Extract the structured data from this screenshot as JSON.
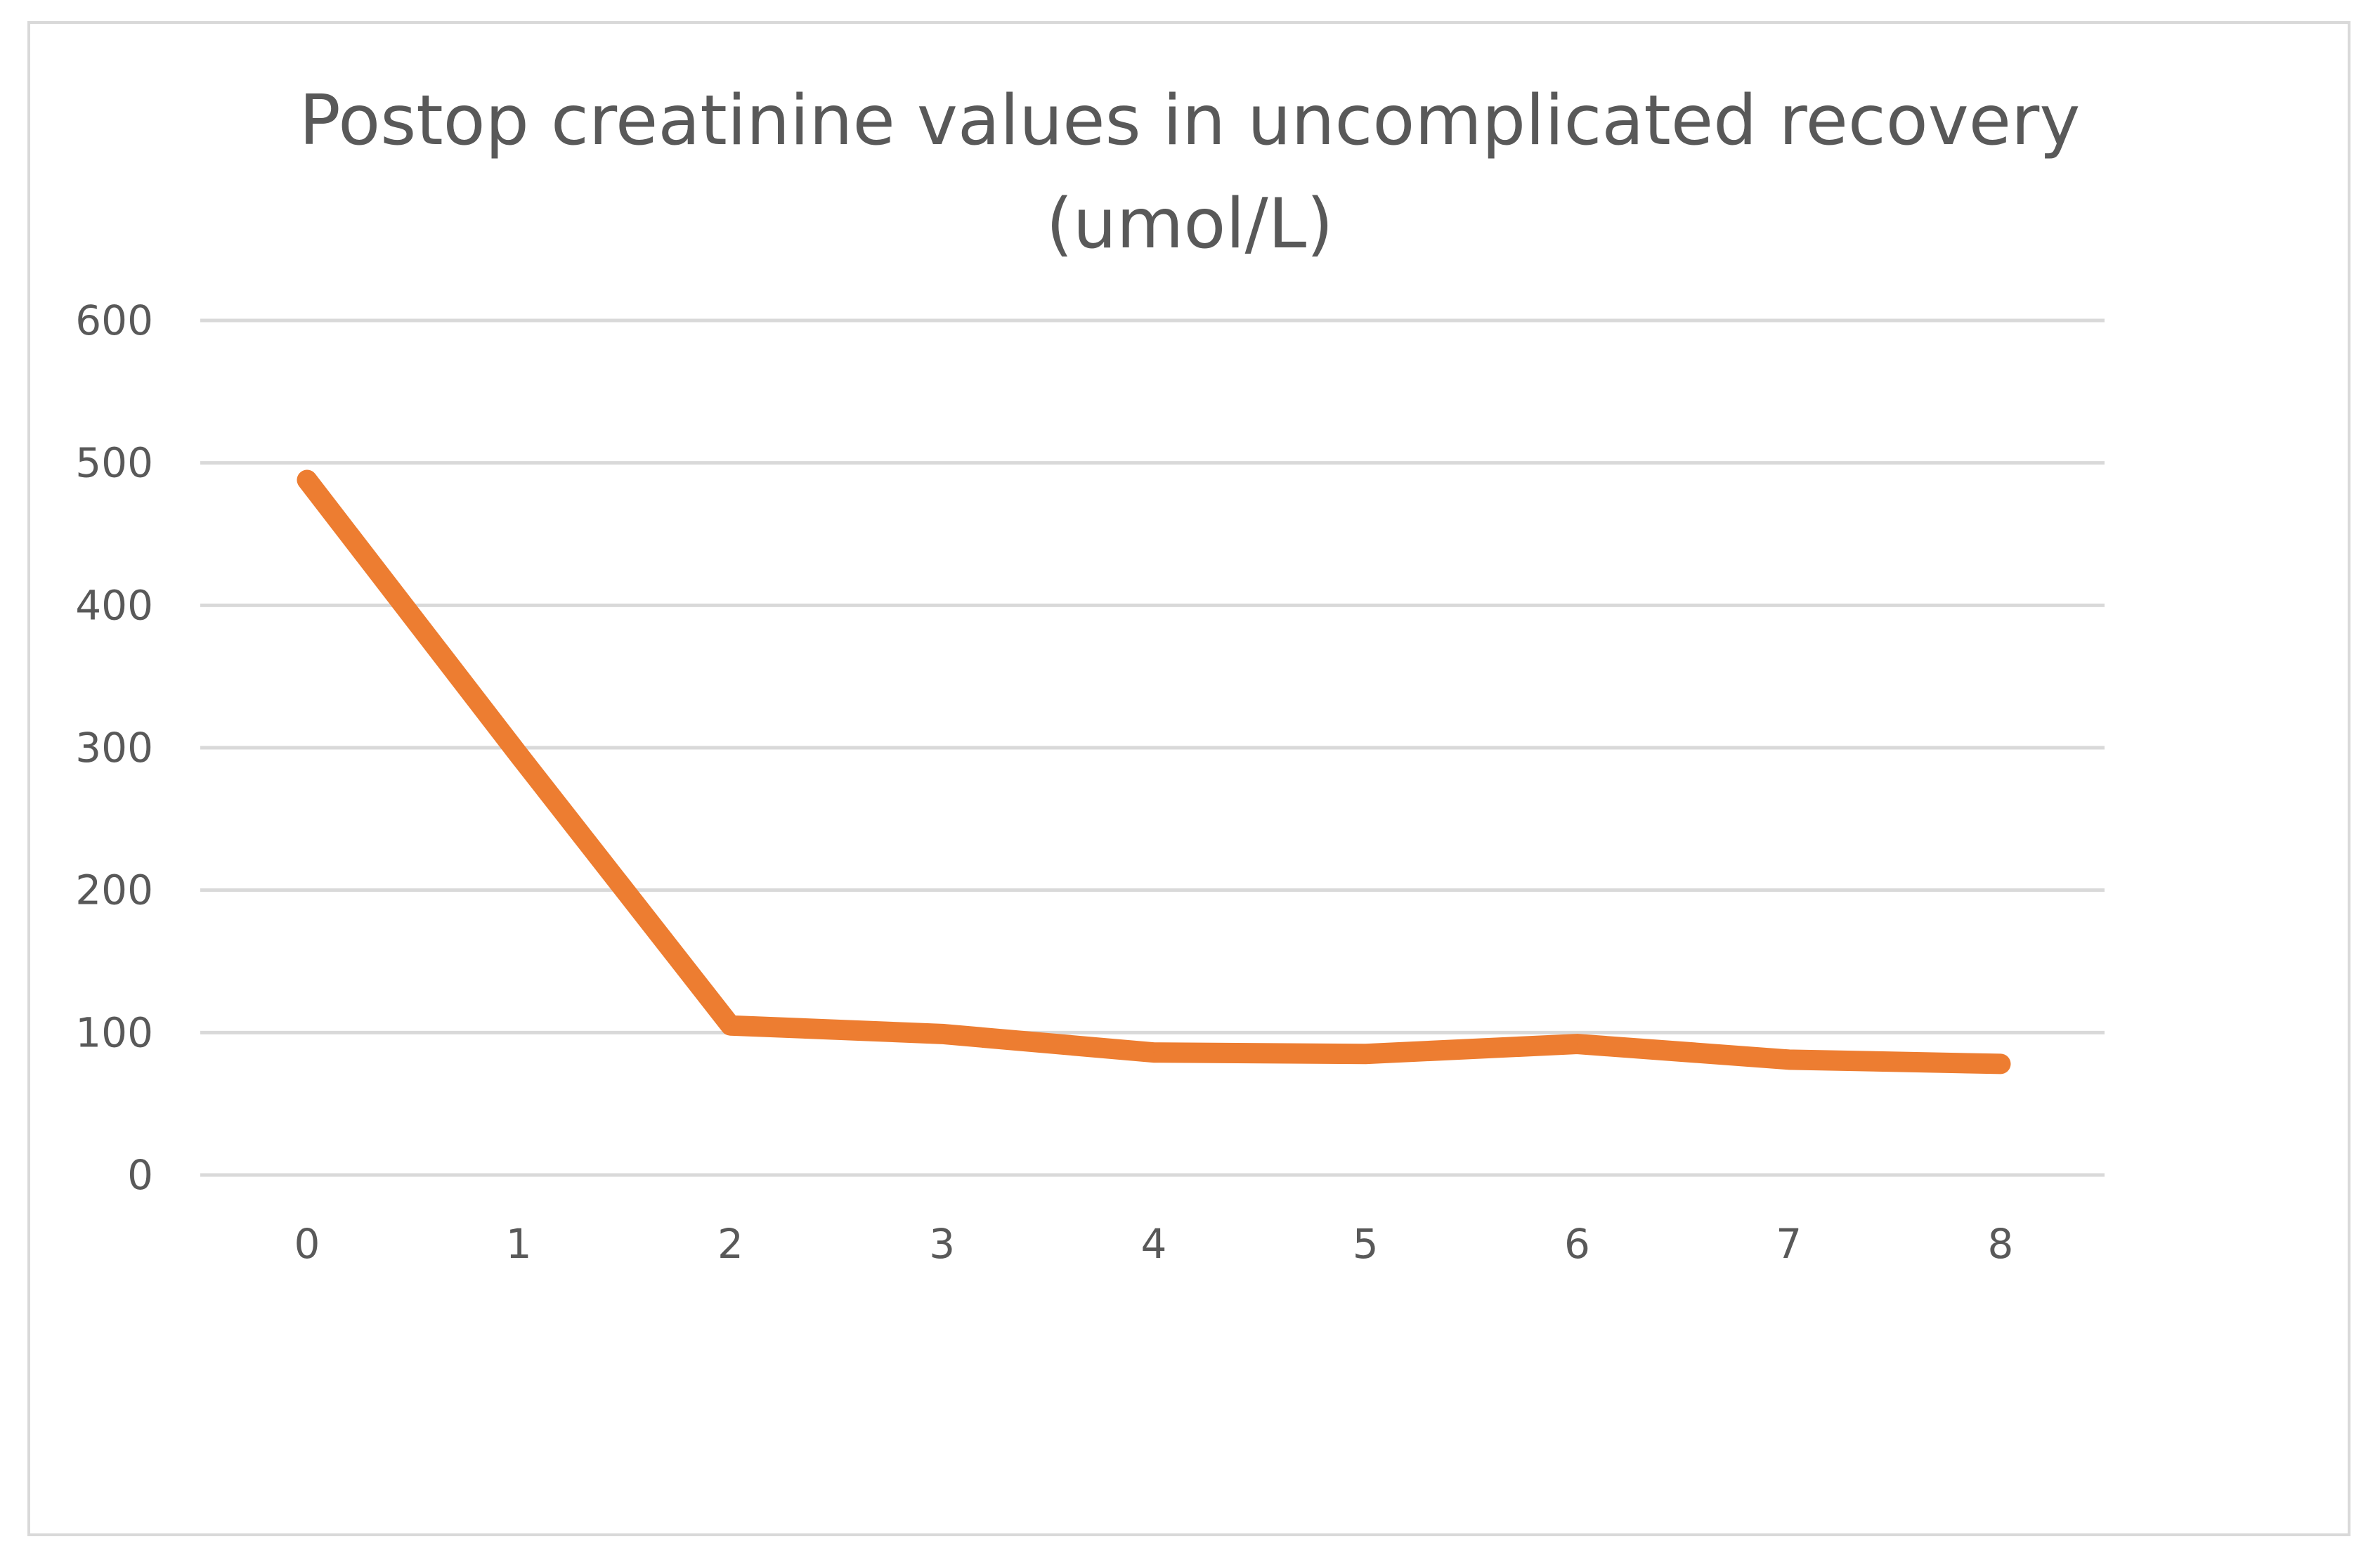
{
  "chart_data": {
    "type": "line",
    "title_lines": [
      "Postop creatinine values in uncomplicated recovery",
      "(umol/L)"
    ],
    "xlabel": "",
    "ylabel": "",
    "x": [
      0,
      1,
      2,
      3,
      4,
      5,
      6,
      7,
      8
    ],
    "series": [
      {
        "values": [
          488,
          295,
          105,
          99,
          86,
          85,
          92,
          81,
          78
        ],
        "color": "#ed7d31"
      }
    ],
    "ylim": [
      0,
      600
    ],
    "yticks": [
      0,
      100,
      200,
      300,
      400,
      500,
      600
    ],
    "xticks": [
      "0",
      "1",
      "2",
      "3",
      "4",
      "5",
      "6",
      "7",
      "8"
    ],
    "grid": true,
    "legend": "none",
    "colors": {
      "gridline": "#d9d9d9",
      "text": "#595959",
      "border": "#d9d9d9"
    }
  }
}
